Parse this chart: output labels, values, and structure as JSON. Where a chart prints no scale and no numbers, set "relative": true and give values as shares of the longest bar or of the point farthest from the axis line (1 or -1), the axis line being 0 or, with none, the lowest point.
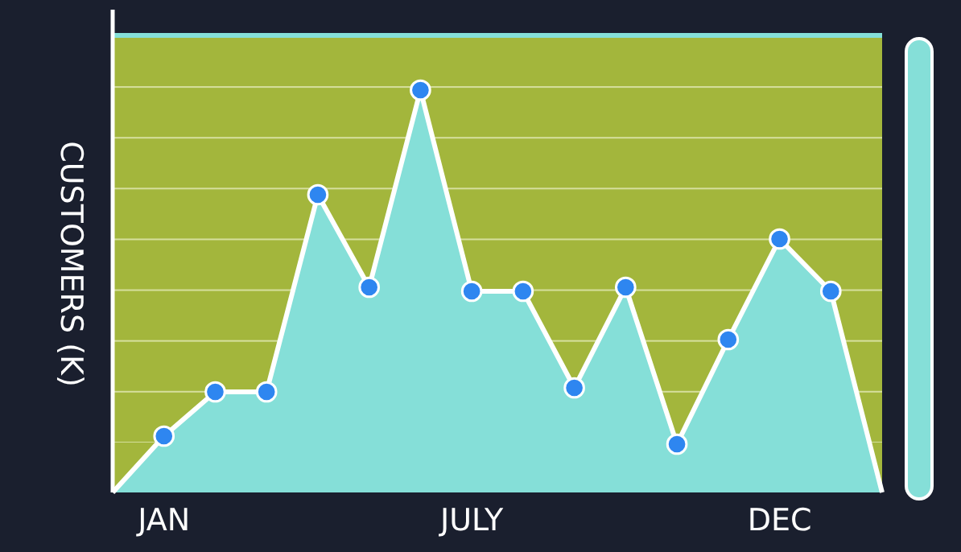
{
  "chart_data": {
    "type": "area",
    "ylabel": "CUSTOMERS (K)",
    "relative": true,
    "marker": "circle",
    "categories": [
      null,
      "JAN",
      null,
      null,
      null,
      null,
      null,
      "JULY",
      null,
      null,
      null,
      null,
      null,
      "DEC",
      null,
      null
    ],
    "series": [
      {
        "color": "#85dfd8",
        "values": [
          0,
          0.14,
          0.25,
          0.25,
          0.74,
          0.51,
          1,
          0.5,
          0.5,
          0.26,
          0.51,
          0.12,
          0.38,
          0.63,
          0.5,
          0
        ]
      }
    ]
  }
}
